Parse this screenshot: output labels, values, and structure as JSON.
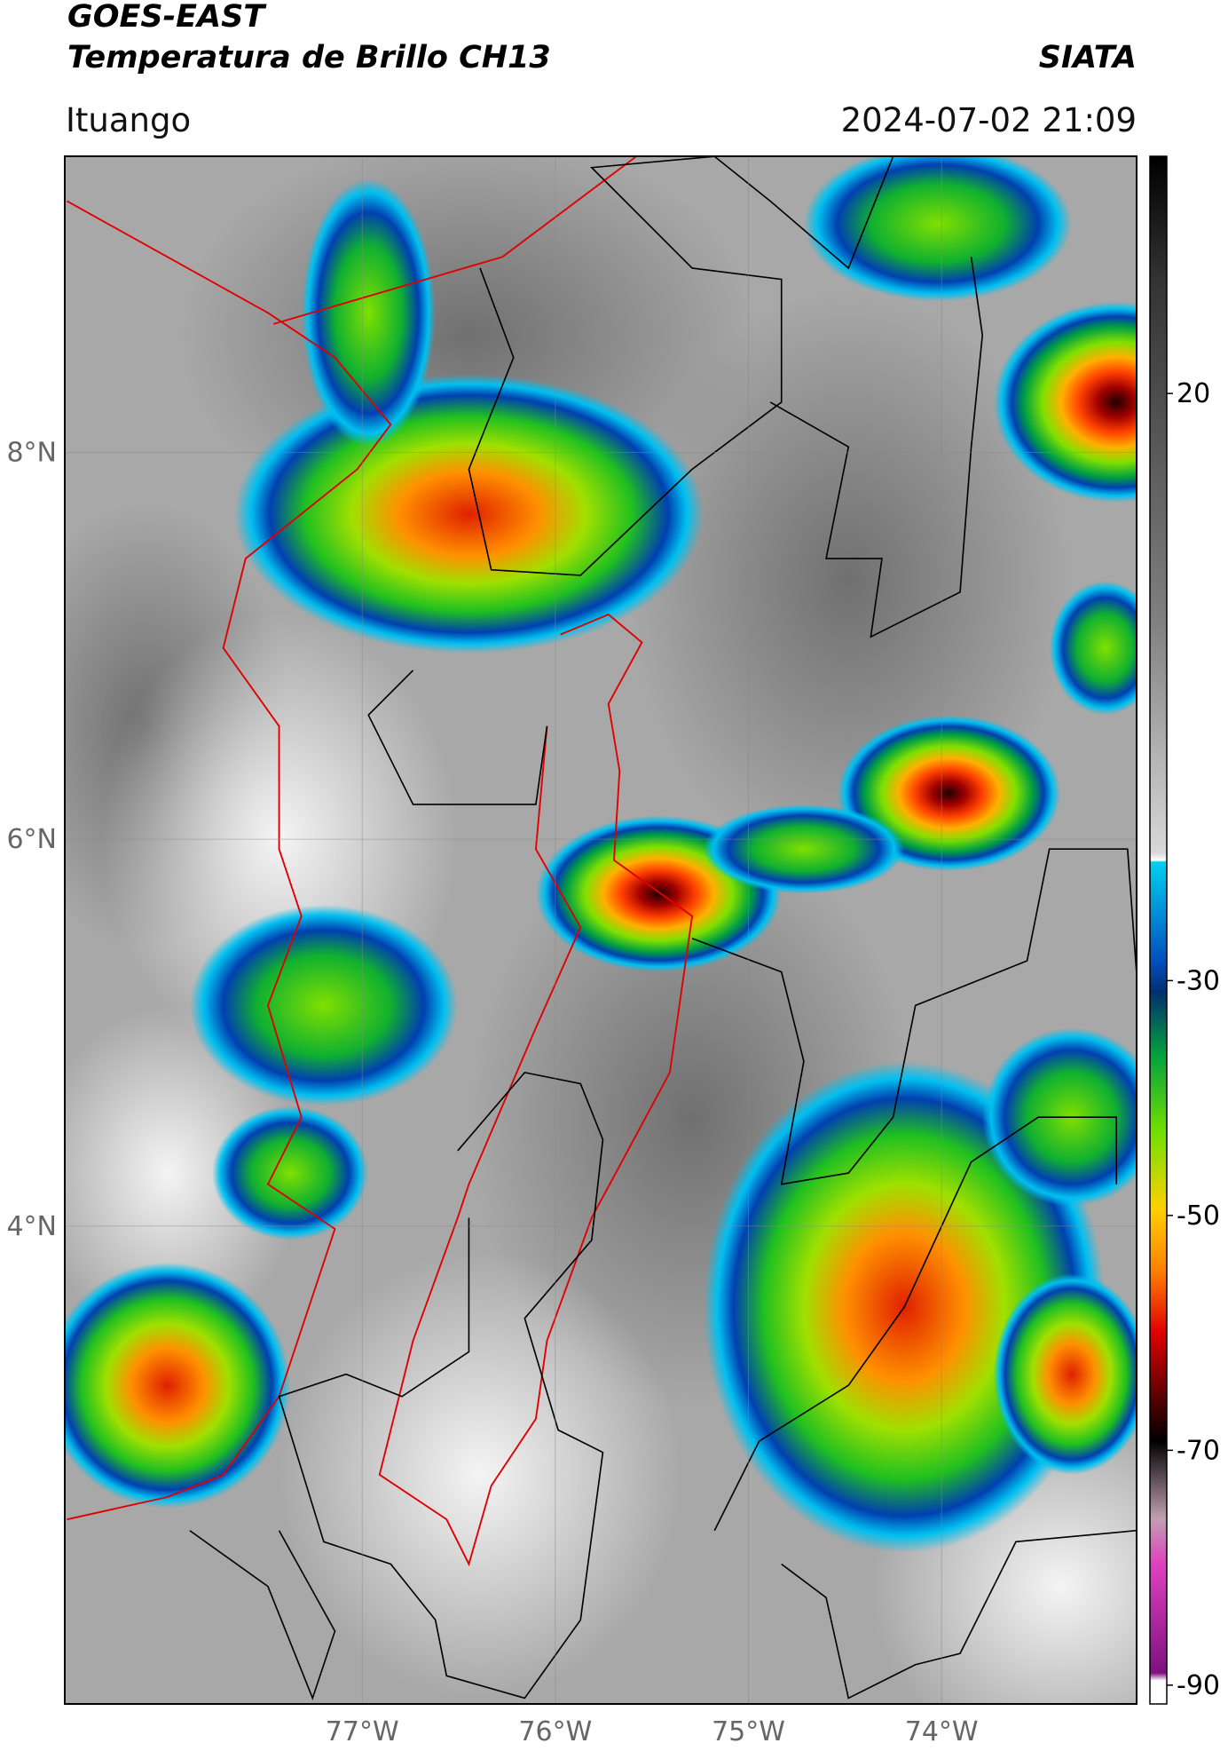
{
  "header": {
    "title_line1": "GOES-EAST",
    "title_line2": "Temperatura de Brillo CH13",
    "agency": "SIATA",
    "region": "Ituango",
    "datetime": "2024-07-02 21:09"
  },
  "map": {
    "xlim": [
      -78.54,
      -72.99
    ],
    "ylim": [
      1.53,
      9.53
    ],
    "xticks": [
      {
        "value": -77,
        "label": "77°W"
      },
      {
        "value": -76,
        "label": "76°W"
      },
      {
        "value": -75,
        "label": "75°W"
      },
      {
        "value": -74,
        "label": "74°W"
      }
    ],
    "yticks": [
      {
        "value": 8,
        "label": "8°N"
      },
      {
        "value": 6,
        "label": "6°N"
      },
      {
        "value": 4,
        "label": "4°N"
      }
    ]
  },
  "colorbar": {
    "lim": [
      -91.6,
      40.2
    ],
    "ticks": [
      20,
      -30,
      -50,
      -70,
      -90
    ]
  }
}
